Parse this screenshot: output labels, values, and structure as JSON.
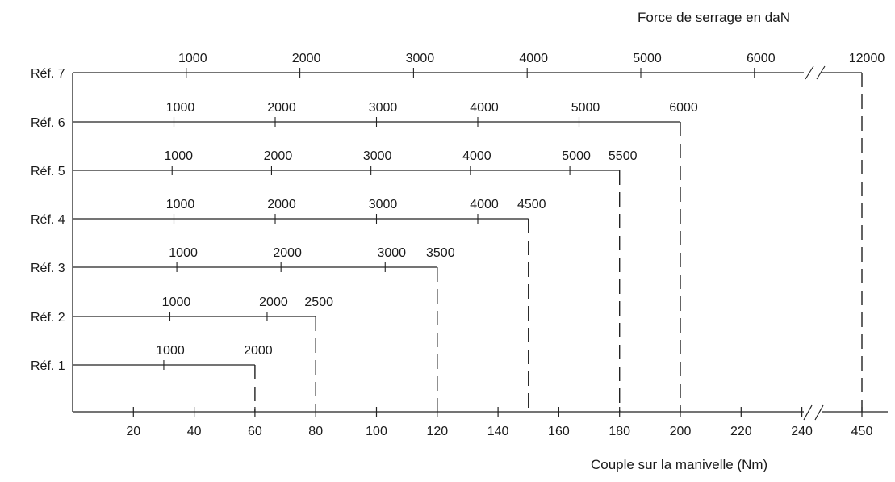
{
  "chart_data": {
    "type": "line",
    "title": "",
    "top_axis_label": "Force de serrage en daN",
    "xlabel": "Couple sur la manivelle (Nm)",
    "x_ticks": [
      "20",
      "40",
      "60",
      "80",
      "100",
      "120",
      "140",
      "160",
      "180",
      "200",
      "220",
      "240",
      "450"
    ],
    "x_break": "240–450",
    "series": [
      {
        "name": "Réf. 1",
        "end_torque": 60,
        "force_ticks": [
          "1000",
          "2000"
        ]
      },
      {
        "name": "Réf. 2",
        "end_torque": 80,
        "force_ticks": [
          "1000",
          "2000",
          "2500"
        ]
      },
      {
        "name": "Réf. 3",
        "end_torque": 120,
        "force_ticks": [
          "1000",
          "2000",
          "3000",
          "3500"
        ]
      },
      {
        "name": "Réf. 4",
        "end_torque": 150,
        "force_ticks": [
          "1000",
          "2000",
          "3000",
          "4000",
          "4500"
        ]
      },
      {
        "name": "Réf. 5",
        "end_torque": 180,
        "force_ticks": [
          "1000",
          "2000",
          "3000",
          "4000",
          "5000",
          "5500"
        ]
      },
      {
        "name": "Réf. 6",
        "end_torque": 200,
        "force_ticks": [
          "1000",
          "2000",
          "3000",
          "4000",
          "5000",
          "6000"
        ]
      },
      {
        "name": "Réf. 7",
        "end_torque": 450,
        "force_ticks": [
          "1000",
          "2000",
          "3000",
          "4000",
          "5000",
          "6000",
          "12000"
        ]
      }
    ]
  }
}
